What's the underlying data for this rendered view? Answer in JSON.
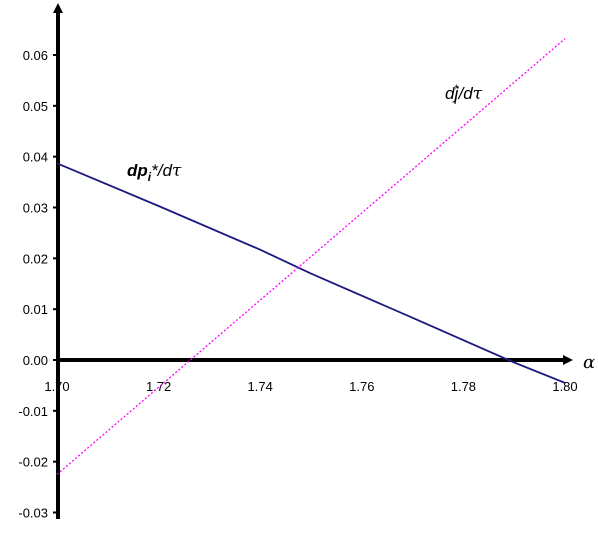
{
  "chart_data": {
    "type": "line",
    "title": "",
    "xlabel": "α",
    "ylabel": "",
    "xlim": [
      1.7,
      1.8
    ],
    "ylim": [
      -0.03,
      0.06
    ],
    "grid": false,
    "x_ticks": [
      "1.70",
      "1.72",
      "1.74",
      "1.76",
      "1.78",
      "1.80"
    ],
    "y_ticks": [
      "-0.03",
      "-0.02",
      "-0.01",
      "0.00",
      "0.01",
      "0.02",
      "0.03",
      "0.04",
      "0.05",
      "0.06"
    ],
    "series": [
      {
        "name": "dp_i*/dτ",
        "color": "#1a1a80",
        "style": "solid",
        "x": [
          1.7,
          1.72,
          1.74,
          1.75,
          1.77,
          1.79,
          1.8
        ],
        "y": [
          0.0387,
          0.0303,
          0.0217,
          0.017,
          0.0083,
          -0.0005,
          -0.0045
        ]
      },
      {
        "name": "dj_i*/dτ",
        "color": "#ff00ff",
        "style": "dotted",
        "x": [
          1.7,
          1.8
        ],
        "y": [
          -0.0225,
          0.0632
        ]
      }
    ],
    "labels": {
      "dp": {
        "main": "dp",
        "sub": "i",
        "tail": "*/d",
        "greek": "τ"
      },
      "dj": {
        "main": "dj",
        "sub": "i",
        "sup": "*",
        "tail": "/d",
        "greek": "τ"
      }
    }
  }
}
